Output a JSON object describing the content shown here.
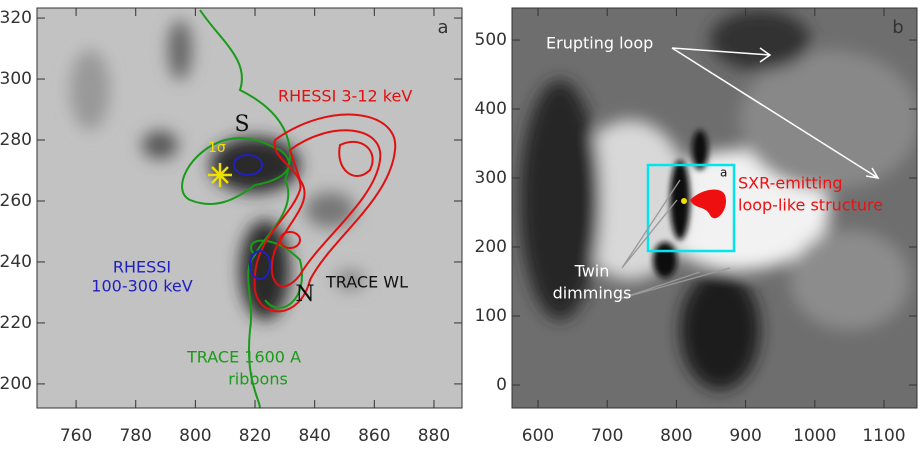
{
  "chart_data": [
    {
      "type": "image",
      "xlim": [
        746.9,
        889.4
      ],
      "ylim": [
        192.1,
        323.3
      ],
      "xticks": [
        760,
        780,
        800,
        820,
        840,
        860,
        880
      ],
      "yticks": [
        200,
        220,
        240,
        260,
        280,
        300,
        320
      ],
      "annotations": [
        "a",
        "S",
        "1σ",
        "RHESSI 3-12 keV",
        "RHESSI",
        "100-300 keV",
        "N",
        "TRACE WL",
        "TRACE 1600 A",
        "ribbons"
      ]
    },
    {
      "type": "image",
      "xlim": [
        562.4,
        1147.7
      ],
      "ylim": [
        -33.3,
        546.4
      ],
      "xticks": [
        600,
        700,
        800,
        900,
        1000,
        1100
      ],
      "yticks": [
        0,
        100,
        200,
        300,
        400,
        500
      ],
      "annotations": [
        "b",
        "Erupting loop",
        "SXR-emitting",
        "loop-like structure",
        "Twin",
        "dimmings",
        "a"
      ]
    }
  ]
}
